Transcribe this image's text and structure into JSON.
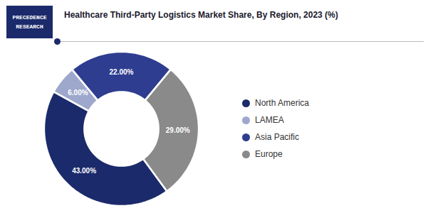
{
  "chart_data": {
    "type": "pie",
    "title": "Healthcare Third-Party Logistics Market Share, By Region, 2023 (%)",
    "categories": [
      "North America",
      "LAMEA",
      "Asia Pacific",
      "Europe"
    ],
    "values": [
      43.0,
      6.0,
      22.0,
      29.0
    ],
    "value_labels": [
      "43.00%",
      "6.00%",
      "22.00%",
      "29.00%"
    ],
    "colors": [
      "#1b2a6b",
      "#9da8cc",
      "#2e3d8f",
      "#8a8a8a"
    ],
    "data_labels": true,
    "legend": "right",
    "annotations": [
      "PRECEDENCE",
      "RESEARCH"
    ]
  }
}
